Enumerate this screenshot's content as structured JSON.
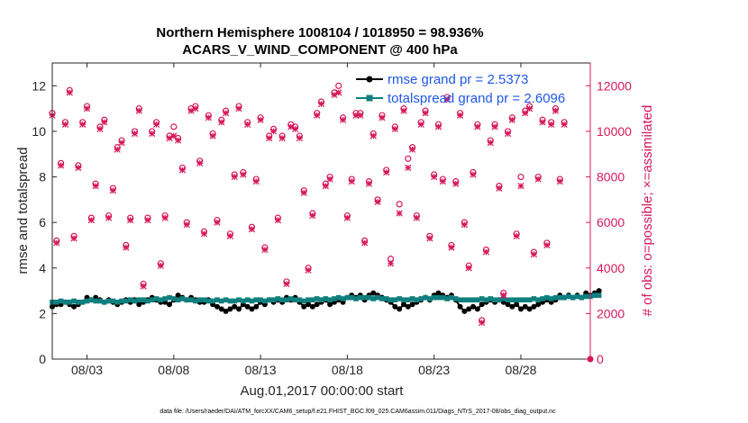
{
  "chart_data": {
    "type": "line",
    "title": "Northern Hemisphere 1008104 / 1018950 = 98.936%",
    "subtitle": "ACARS_V_WIND_COMPONENT @ 400 hPa",
    "xlabel": "Aug.01,2017 00:00:00 start",
    "ylabel_left": "rmse and totalspread",
    "ylabel_right": "# of obs: o=possible; ×=assimilated",
    "footnote": "data file: /Users/raeder/DAI/ATM_forcXX/CAM6_setup/f.e21.FHIST_BGC.f09_025.CAM6assim.011/Diags_NTrS_2017-08/obs_diag_output.nc",
    "xlim_days": [
      1,
      32
    ],
    "x_ticks": [
      {
        "day": 3,
        "label": "08/03"
      },
      {
        "day": 8,
        "label": "08/08"
      },
      {
        "day": 13,
        "label": "08/13"
      },
      {
        "day": 18,
        "label": "08/18"
      },
      {
        "day": 23,
        "label": "08/23"
      },
      {
        "day": 28,
        "label": "08/28"
      }
    ],
    "ylim_left": [
      0,
      13
    ],
    "y_ticks_left": [
      0,
      2,
      4,
      6,
      8,
      10,
      12
    ],
    "ylim_right": [
      0,
      13000
    ],
    "y_ticks_right": [
      0,
      2000,
      4000,
      6000,
      8000,
      10000,
      12000
    ],
    "legend_position": "top-right",
    "grid": false,
    "series": [
      {
        "name": "rmse grand pr = 2.5373",
        "color": "#000000",
        "marker": "filled-circle",
        "axis": "left",
        "x_start_day": 1,
        "step_days": 0.25,
        "values": [
          2.3,
          2.4,
          2.4,
          2.5,
          2.4,
          2.3,
          2.4,
          2.5,
          2.7,
          2.6,
          2.7,
          2.6,
          2.5,
          2.6,
          2.5,
          2.4,
          2.5,
          2.6,
          2.5,
          2.6,
          2.4,
          2.5,
          2.6,
          2.7,
          2.6,
          2.5,
          2.5,
          2.4,
          2.6,
          2.8,
          2.7,
          2.6,
          2.7,
          2.6,
          2.5,
          2.5,
          2.6,
          2.4,
          2.3,
          2.2,
          2.1,
          2.2,
          2.3,
          2.2,
          2.4,
          2.3,
          2.2,
          2.3,
          2.5,
          2.4,
          2.6,
          2.5,
          2.6,
          2.5,
          2.7,
          2.6,
          2.7,
          2.5,
          2.3,
          2.4,
          2.3,
          2.4,
          2.5,
          2.6,
          2.4,
          2.5,
          2.6,
          2.5,
          2.7,
          2.8,
          2.7,
          2.8,
          2.6,
          2.8,
          2.9,
          2.8,
          2.7,
          2.6,
          2.5,
          2.3,
          2.2,
          2.4,
          2.3,
          2.4,
          2.5,
          2.6,
          2.7,
          2.6,
          2.8,
          2.9,
          2.8,
          2.7,
          2.8,
          2.6,
          2.3,
          2.1,
          2.2,
          2.3,
          2.2,
          2.4,
          2.5,
          2.6,
          2.5,
          2.6,
          2.5,
          2.4,
          2.3,
          2.4,
          2.2,
          2.3,
          2.2,
          2.3,
          2.4,
          2.5,
          2.6,
          2.5,
          2.6,
          2.8,
          2.7,
          2.8,
          2.7,
          2.8,
          2.7,
          2.9,
          2.8,
          2.9,
          3.0
        ]
      },
      {
        "name": "totalspread grand pr = 2.6096",
        "color": "#0f7f7f",
        "marker": "filled-square",
        "axis": "left",
        "x_start_day": 1,
        "step_days": 0.25,
        "values": [
          2.5,
          2.5,
          2.55,
          2.5,
          2.5,
          2.55,
          2.5,
          2.5,
          2.55,
          2.6,
          2.55,
          2.55,
          2.5,
          2.55,
          2.55,
          2.5,
          2.55,
          2.55,
          2.6,
          2.55,
          2.6,
          2.6,
          2.55,
          2.6,
          2.65,
          2.6,
          2.65,
          2.7,
          2.65,
          2.6,
          2.65,
          2.6,
          2.6,
          2.55,
          2.6,
          2.6,
          2.55,
          2.55,
          2.6,
          2.55,
          2.6,
          2.55,
          2.55,
          2.6,
          2.55,
          2.6,
          2.55,
          2.6,
          2.6,
          2.55,
          2.6,
          2.6,
          2.65,
          2.6,
          2.6,
          2.65,
          2.6,
          2.6,
          2.55,
          2.6,
          2.6,
          2.65,
          2.6,
          2.65,
          2.6,
          2.65,
          2.7,
          2.65,
          2.7,
          2.7,
          2.65,
          2.7,
          2.7,
          2.7,
          2.65,
          2.7,
          2.65,
          2.65,
          2.6,
          2.6,
          2.65,
          2.6,
          2.6,
          2.65,
          2.6,
          2.65,
          2.7,
          2.65,
          2.7,
          2.7,
          2.7,
          2.65,
          2.7,
          2.65,
          2.6,
          2.6,
          2.6,
          2.6,
          2.6,
          2.65,
          2.6,
          2.65,
          2.6,
          2.6,
          2.65,
          2.6,
          2.6,
          2.6,
          2.6,
          2.6,
          2.6,
          2.65,
          2.6,
          2.65,
          2.7,
          2.65,
          2.7,
          2.7,
          2.7,
          2.75,
          2.7,
          2.75,
          2.7,
          2.75,
          2.75,
          2.8,
          2.8
        ]
      },
      {
        "name": "possible",
        "color": "#d6185a",
        "marker": "open-circle",
        "axis": "right",
        "x_start_day": 1,
        "step_days": 0.25,
        "values": [
          10800,
          5200,
          8600,
          10400,
          11800,
          5400,
          8500,
          10400,
          11100,
          6200,
          7700,
          10200,
          10500,
          6300,
          7500,
          9300,
          9600,
          5000,
          6200,
          10000,
          11000,
          3300,
          6200,
          10000,
          10400,
          4200,
          6300,
          9800,
          10200,
          9700,
          8400,
          6000,
          11000,
          11100,
          8700,
          5600,
          10700,
          9900,
          6100,
          10500,
          10900,
          5500,
          8100,
          11100,
          8200,
          10400,
          5800,
          7900,
          10600,
          4900,
          9800,
          10100,
          6200,
          9800,
          3400,
          10300,
          10200,
          9800,
          7400,
          4000,
          6400,
          10800,
          11300,
          7700,
          8000,
          11700,
          12000,
          10600,
          6300,
          7900,
          10800,
          10800,
          5200,
          7800,
          9900,
          7000,
          10700,
          8300,
          4400,
          10200,
          6800,
          11000,
          8800,
          9300,
          6300,
          10400,
          10900,
          5400,
          8100,
          10300,
          7900,
          11500,
          5000,
          7800,
          10800,
          6000,
          4100,
          8200,
          10300,
          1700,
          4800,
          9600,
          10300,
          7600,
          2900,
          10000,
          10600,
          5500,
          8000,
          10900,
          11100,
          4700,
          8000,
          10500,
          5100,
          10400,
          11000,
          7900,
          10400
        ]
      },
      {
        "name": "assimilated",
        "color": "#d6185a",
        "marker": "cross",
        "axis": "right",
        "x_start_day": 1,
        "step_days": 0.25,
        "values": [
          10700,
          5100,
          8500,
          10300,
          11700,
          5300,
          8400,
          10300,
          11000,
          6100,
          7600,
          10100,
          10400,
          6200,
          7400,
          9200,
          9500,
          4900,
          6100,
          9900,
          10900,
          3200,
          6100,
          9900,
          10300,
          4100,
          6200,
          9700,
          9800,
          9600,
          8300,
          5900,
          10900,
          11000,
          8600,
          5500,
          10600,
          9800,
          6000,
          10400,
          10800,
          5400,
          8000,
          11000,
          8100,
          10300,
          5700,
          7800,
          10500,
          4800,
          9700,
          10000,
          6100,
          9700,
          3300,
          10200,
          10100,
          9700,
          7300,
          3900,
          6300,
          10700,
          11200,
          7600,
          7900,
          11600,
          11700,
          10500,
          6200,
          7800,
          10700,
          10700,
          5100,
          7700,
          9800,
          6900,
          10600,
          8200,
          4200,
          10100,
          6400,
          10900,
          8400,
          9200,
          6200,
          10300,
          10800,
          5300,
          8000,
          10200,
          7800,
          11400,
          4900,
          7700,
          10700,
          5900,
          4000,
          8100,
          10200,
          1600,
          4700,
          9500,
          10200,
          7500,
          2800,
          9900,
          10500,
          5400,
          7600,
          10800,
          11000,
          4600,
          7900,
          10400,
          5000,
          10300,
          10900,
          7800,
          10300
        ]
      }
    ]
  }
}
